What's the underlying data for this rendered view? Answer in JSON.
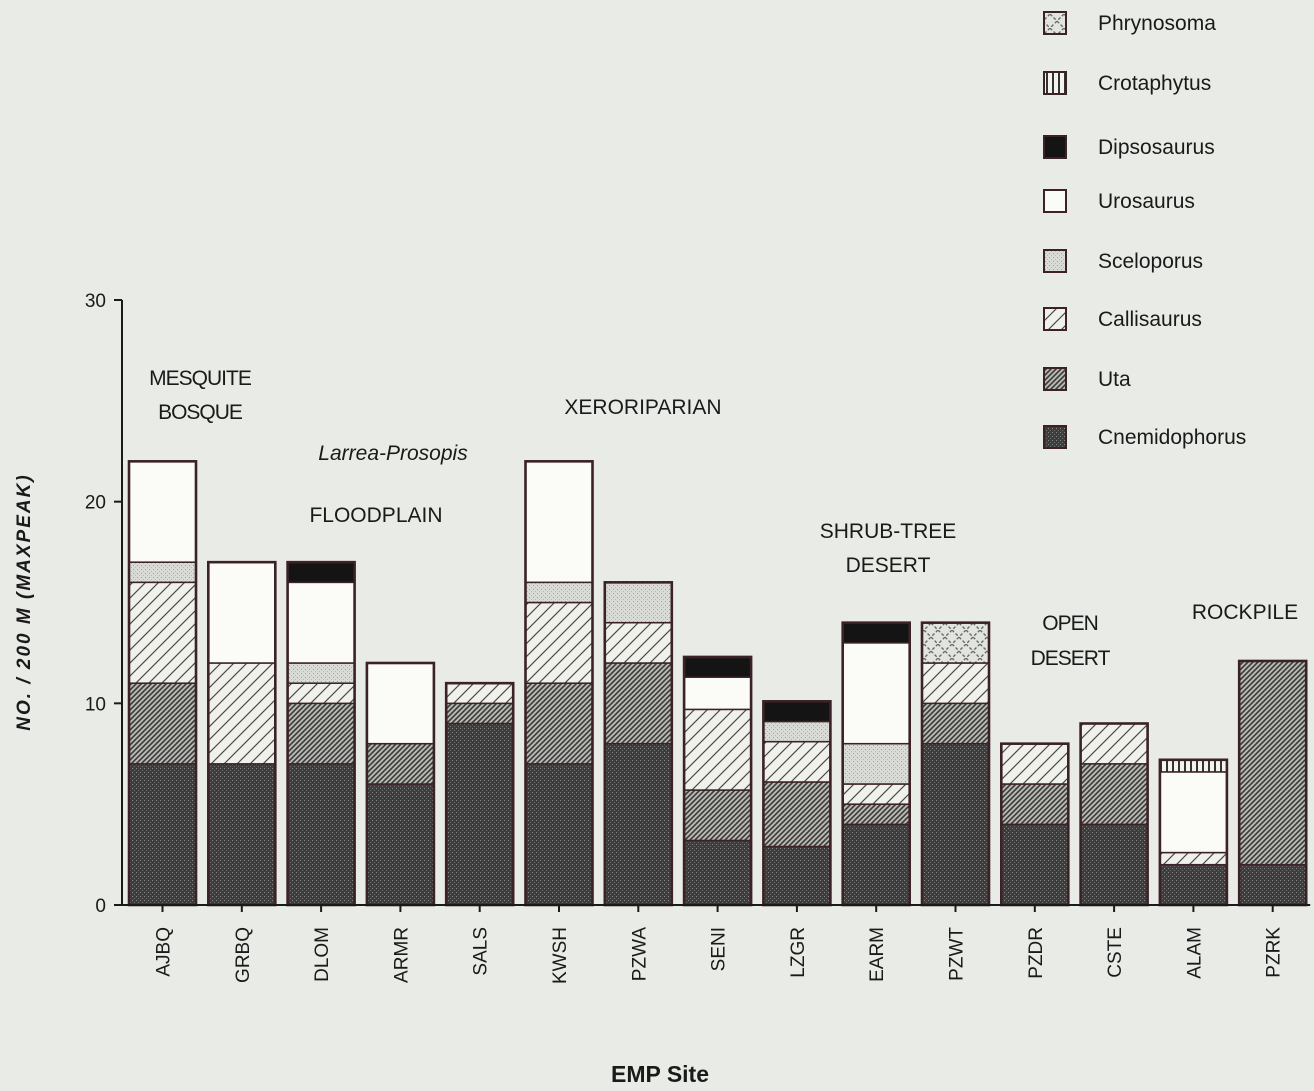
{
  "chart_data": {
    "type": "bar",
    "stacked": true,
    "title": "",
    "xlabel": "EMP Site",
    "ylabel": "NO. / 200 M (MAXPEAK)",
    "ylim": [
      0,
      30
    ],
    "yticks": [
      0,
      10,
      20,
      30
    ],
    "grid": false,
    "legend_position": "top-right",
    "categories": [
      "AJBQ",
      "GRBQ",
      "DLOM",
      "ARMR",
      "SALS",
      "KWSH",
      "PZWA",
      "SENI",
      "LZGR",
      "EARM",
      "PZWT",
      "PZDR",
      "CSTE",
      "ALAM",
      "PZRK"
    ],
    "series": [
      {
        "name": "Cnemidophorus",
        "pattern": "dark-stipple",
        "values": [
          7,
          7,
          7,
          6,
          9,
          7,
          8,
          3.2,
          2.9,
          4,
          8,
          4,
          4,
          2,
          2
        ]
      },
      {
        "name": "Uta",
        "pattern": "dense-hatch",
        "values": [
          4,
          0,
          3,
          2,
          1,
          4,
          4,
          2.5,
          3.2,
          1,
          2,
          2,
          3,
          0,
          10.1
        ]
      },
      {
        "name": "Callisaurus",
        "pattern": "sparse-hatch",
        "values": [
          5,
          5,
          1,
          0,
          1,
          4,
          2,
          4,
          2,
          1,
          2,
          2,
          2,
          0.6,
          0
        ]
      },
      {
        "name": "Sceloporus",
        "pattern": "light-stipple",
        "values": [
          1,
          0,
          1,
          0,
          0,
          1,
          2,
          0,
          1,
          2,
          0,
          0,
          0,
          0,
          0
        ]
      },
      {
        "name": "Urosaurus",
        "pattern": "white",
        "values": [
          5,
          5,
          4,
          4,
          0,
          6,
          0,
          1.6,
          0,
          5,
          0,
          0,
          0,
          4,
          0
        ]
      },
      {
        "name": "Dipsosaurus",
        "pattern": "black",
        "values": [
          0,
          0,
          1,
          0,
          0,
          0,
          0,
          1,
          1,
          1,
          0,
          0,
          0,
          0,
          0
        ]
      },
      {
        "name": "Crotaphytus",
        "pattern": "vertical-bars",
        "values": [
          0,
          0,
          0,
          0,
          0,
          0,
          0,
          0,
          0,
          0,
          0,
          0,
          0,
          0.6,
          0
        ]
      },
      {
        "name": "Phrynosoma",
        "pattern": "crosshatch",
        "values": [
          0,
          0,
          0,
          0,
          0,
          0,
          0,
          0,
          0,
          0,
          2,
          0,
          0,
          0,
          0
        ]
      }
    ],
    "annotations": [
      {
        "lines": [
          "MESQUITE",
          "BOSQUE"
        ],
        "near": "AJBQ"
      },
      {
        "lines": [
          "Larrea-Prosopis"
        ],
        "near": "DLOM",
        "italic": true
      },
      {
        "lines": [
          "FLOODPLAIN"
        ],
        "near": "DLOM"
      },
      {
        "lines": [
          "XERORIPARIAN"
        ],
        "near": "KWSH"
      },
      {
        "lines": [
          "SHRUB-TREE",
          "DESERT"
        ],
        "near": "EARM"
      },
      {
        "lines": [
          "OPEN",
          "DESERT"
        ],
        "near": "PZDR"
      },
      {
        "lines": [
          "ROCKPILE"
        ],
        "near": "PZRK"
      }
    ]
  },
  "colors": {
    "background": "#e9ebe6",
    "ink": "#1a1a1a",
    "bar_outline": "#3a2226"
  }
}
